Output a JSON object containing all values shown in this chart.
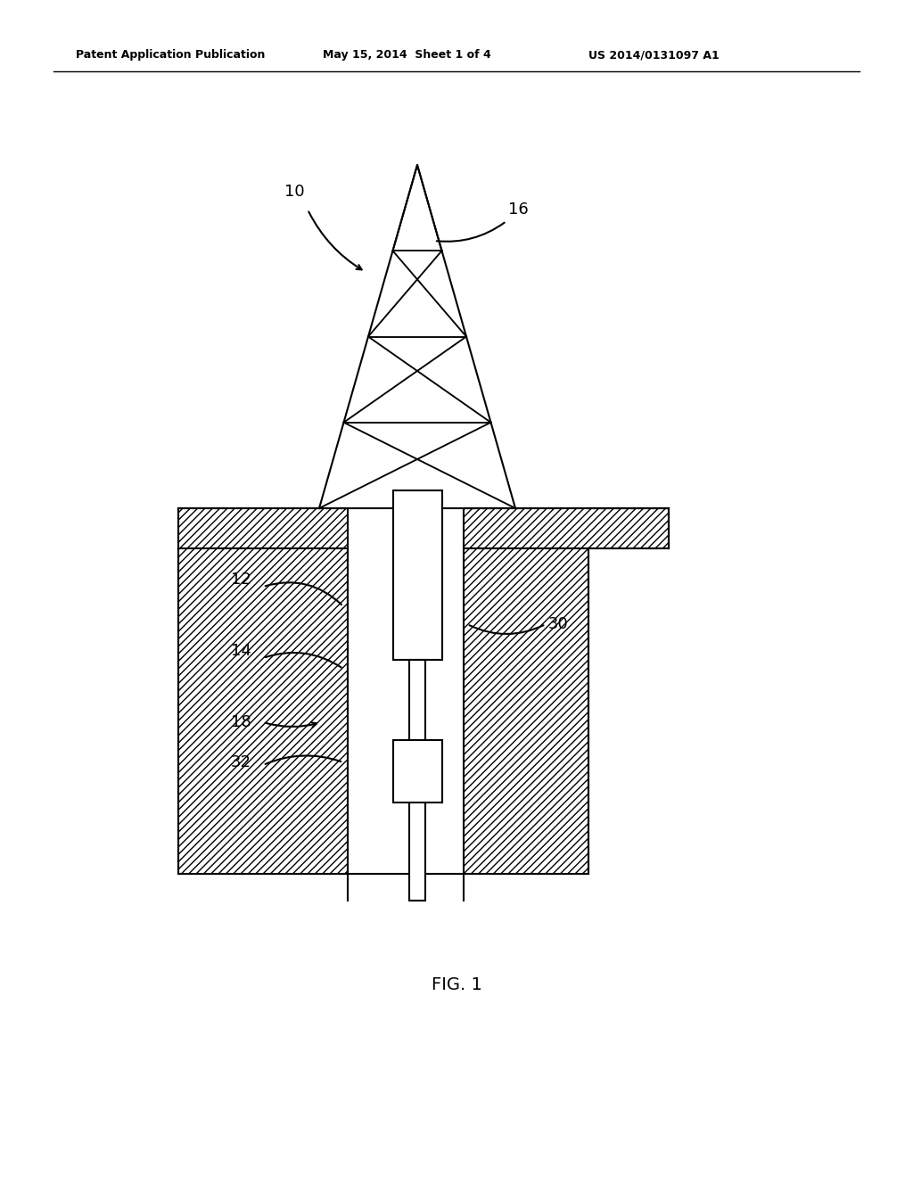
{
  "title": "FIG. 1",
  "header_left": "Patent Application Publication",
  "header_center": "May 15, 2014  Sheet 1 of 4",
  "header_right": "US 2014/0131097 A1",
  "bg_color": "#ffffff",
  "line_color": "#000000",
  "label_10": "10",
  "label_12": "12",
  "label_14": "14",
  "label_16": "16",
  "label_18": "18",
  "label_30": "30",
  "label_32": "32",
  "figcaption": "FIG. 1"
}
